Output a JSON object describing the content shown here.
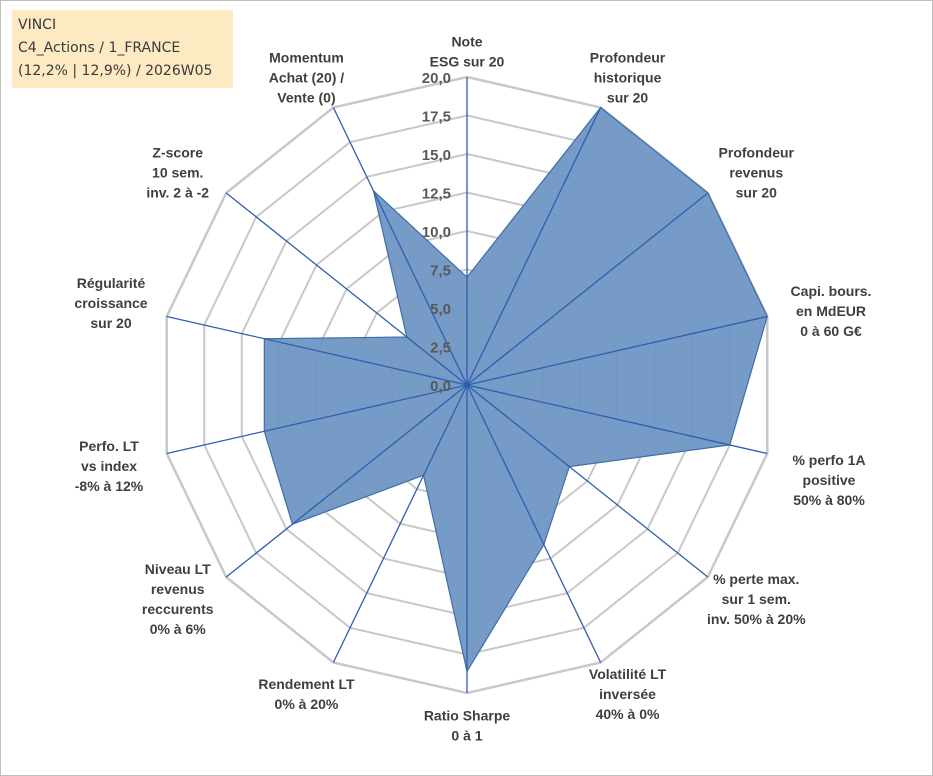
{
  "info": {
    "company": "VINCI",
    "category": "C4_Actions / 1_FRANCE",
    "stats": "(12,2% | 12,9%) / 2026W05"
  },
  "chart_data": {
    "type": "radar",
    "title": "",
    "rmin": 0,
    "rmax": 20,
    "ticks": [
      "0,0",
      "2,5",
      "5,0",
      "7,5",
      "10,0",
      "12,5",
      "15,0",
      "17,5",
      "20,0"
    ],
    "tick_values": [
      0,
      2.5,
      5,
      7.5,
      10,
      12.5,
      15,
      17.5,
      20
    ],
    "axes": [
      {
        "lines": [
          "Note",
          "ESG sur 20"
        ]
      },
      {
        "lines": [
          "Profondeur",
          "historique",
          "sur 20"
        ]
      },
      {
        "lines": [
          "Profondeur",
          "revenus",
          "sur 20"
        ]
      },
      {
        "lines": [
          "Capi. bours.",
          "en MdEUR",
          "0 à 60 G€"
        ]
      },
      {
        "lines": [
          "% perfo 1A",
          "positive",
          "50% à 80%"
        ]
      },
      {
        "lines": [
          "% perte max.",
          "sur 1 sem.",
          "inv. 50% à 20%"
        ]
      },
      {
        "lines": [
          "Volatilité LT",
          "inversée",
          "40% à 0%"
        ]
      },
      {
        "lines": [
          "Ratio Sharpe",
          "0 à 1"
        ]
      },
      {
        "lines": [
          "Rendement LT",
          "0% à 20%"
        ]
      },
      {
        "lines": [
          "Niveau LT",
          "revenus",
          "reccurents",
          "0% à 6%"
        ]
      },
      {
        "lines": [
          "Perfo. LT",
          "vs index",
          "-8% à 12%"
        ]
      },
      {
        "lines": [
          "Régularité",
          "croissance",
          "sur 20"
        ]
      },
      {
        "lines": [
          "Z-score",
          "10 sem.",
          "inv. 2 à -2"
        ]
      },
      {
        "lines": [
          "Momentum",
          "Achat (20) /",
          "Vente (0)"
        ]
      }
    ],
    "series": [
      {
        "name": "VINCI",
        "color": "#6f96c4",
        "stroke": "#3f6ea8",
        "values": [
          7.0,
          20.0,
          20.0,
          20.0,
          17.5,
          8.5,
          11.5,
          18.6,
          6.5,
          14.5,
          13.5,
          13.5,
          5.0,
          14.0
        ]
      }
    ],
    "grid_color": "#c8c8c8",
    "spoke_color": "#2f5fae"
  }
}
